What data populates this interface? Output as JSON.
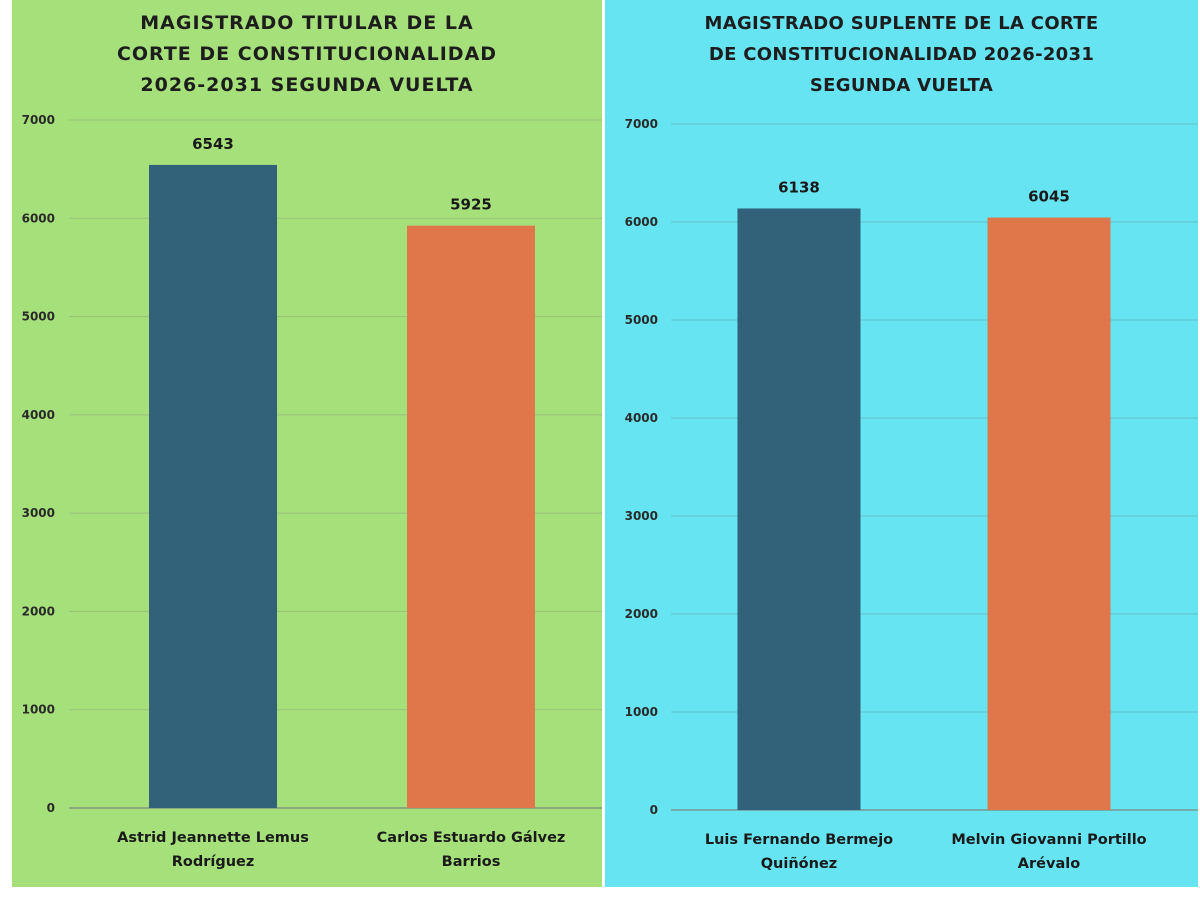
{
  "colors": {
    "left_background": "#a6e07b",
    "right_background": "#66e4f2",
    "series_1": "#32617a",
    "series_2": "#df774a"
  },
  "chart_data": [
    {
      "type": "bar",
      "title": "MAGISTRADO TITULAR DE LA\nCORTE DE CONSTITUCIONALIDAD\n2026-2031 SEGUNDA VUELTA",
      "categories": [
        [
          "Astrid Jeannette Lemus",
          "Rodríguez"
        ],
        [
          "Carlos Estuardo Gálvez",
          "Barrios"
        ]
      ],
      "values": [
        6543,
        5925
      ],
      "bar_colors": [
        "#32617a",
        "#df774a"
      ],
      "ylim": [
        0,
        7000
      ],
      "yticks": [
        0,
        1000,
        2000,
        3000,
        4000,
        5000,
        6000,
        7000
      ],
      "grid": true,
      "xlabel": "",
      "ylabel": ""
    },
    {
      "type": "bar",
      "title": "MAGISTRADO SUPLENTE DE LA CORTE\nDE CONSTITUCIONALIDAD 2026-2031\nSEGUNDA VUELTA",
      "categories": [
        [
          "Luis Fernando Bermejo",
          "Quiñónez"
        ],
        [
          "Melvin Giovanni Portillo",
          "Arévalo"
        ]
      ],
      "values": [
        6138,
        6045
      ],
      "bar_colors": [
        "#32617a",
        "#df774a"
      ],
      "ylim": [
        0,
        7000
      ],
      "yticks": [
        0,
        1000,
        2000,
        3000,
        4000,
        5000,
        6000,
        7000
      ],
      "grid": true,
      "xlabel": "",
      "ylabel": ""
    }
  ]
}
